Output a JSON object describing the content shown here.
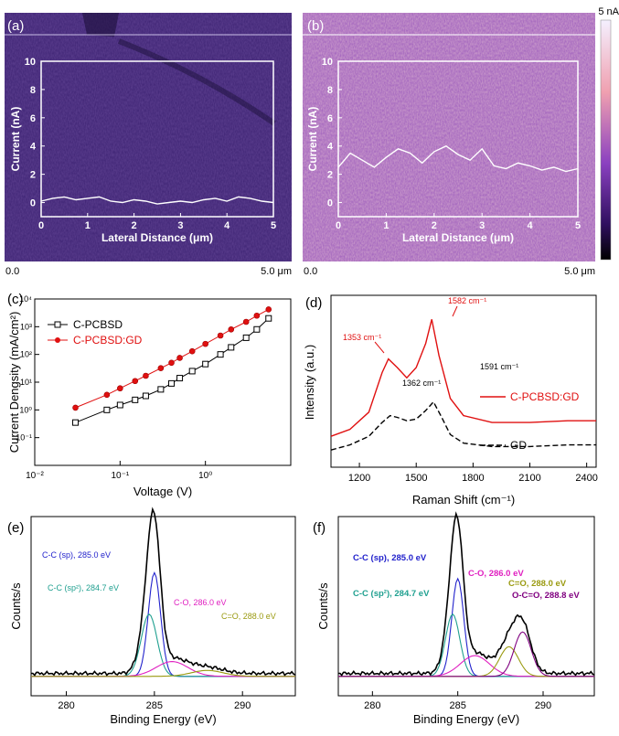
{
  "panels": {
    "a": {
      "label": "(a)"
    },
    "b": {
      "label": "(b)"
    },
    "c": {
      "label": "(c)"
    },
    "d": {
      "label": "(d)"
    },
    "e": {
      "label": "(e)"
    },
    "f": {
      "label": "(f)"
    }
  },
  "colorbar": {
    "max_label": "5 nA"
  },
  "afm_scale": {
    "left": "0.0",
    "right": "5.0 μm"
  },
  "chart_data": [
    {
      "id": "a",
      "type": "line",
      "xlabel": "Lateral Distance (μm)",
      "ylabel": "Current (nA)",
      "xlim": [
        0,
        5
      ],
      "ylim": [
        -1,
        10
      ],
      "xticks": [
        "0",
        "1",
        "2",
        "3",
        "4",
        "5"
      ],
      "yticks": [
        "0",
        "2",
        "4",
        "6",
        "8",
        "10"
      ],
      "series": [
        {
          "x": [
            0,
            0.25,
            0.5,
            0.75,
            1,
            1.25,
            1.5,
            1.75,
            2,
            2.25,
            2.5,
            2.75,
            3,
            3.25,
            3.5,
            3.75,
            4,
            4.25,
            4.5,
            4.75,
            5
          ],
          "y": [
            0.1,
            0.3,
            0.4,
            0.2,
            0.3,
            0.4,
            0.1,
            0.0,
            0.2,
            0.1,
            -0.1,
            0.0,
            0.1,
            0.0,
            0.2,
            0.3,
            0.1,
            0.4,
            0.3,
            0.1,
            0.0
          ]
        }
      ]
    },
    {
      "id": "b",
      "type": "line",
      "xlabel": "Lateral Distance (μm)",
      "ylabel": "Current (nA)",
      "xlim": [
        0,
        5
      ],
      "ylim": [
        -1,
        10
      ],
      "xticks": [
        "0",
        "1",
        "2",
        "3",
        "4",
        "5"
      ],
      "yticks": [
        "0",
        "2",
        "4",
        "6",
        "8",
        "10"
      ],
      "series": [
        {
          "x": [
            0,
            0.25,
            0.5,
            0.75,
            1,
            1.25,
            1.5,
            1.75,
            2,
            2.25,
            2.5,
            2.75,
            3,
            3.25,
            3.5,
            3.75,
            4,
            4.25,
            4.5,
            4.75,
            5
          ],
          "y": [
            2.5,
            3.5,
            3.0,
            2.5,
            3.2,
            3.8,
            3.5,
            2.8,
            3.6,
            4.0,
            3.4,
            3.0,
            3.8,
            2.6,
            2.4,
            2.8,
            2.6,
            2.3,
            2.5,
            2.2,
            2.4
          ]
        }
      ]
    },
    {
      "id": "c",
      "type": "scatter",
      "xscale": "log",
      "yscale": "log",
      "xlabel": "Voltage (V)",
      "ylabel": "Current Dengsity (mA/cm²)",
      "xlim": [
        0.01,
        10
      ],
      "ylim": [
        0.01,
        10000
      ],
      "xticks": [
        "10⁻²",
        "10⁻¹",
        "10⁰"
      ],
      "yticks": [
        "10⁻¹",
        "10⁰",
        "10¹",
        "10²",
        "10³",
        "10⁴"
      ],
      "legend": "top-left",
      "series": [
        {
          "name": "C-PCBSD",
          "color": "#000000",
          "marker": "open-square",
          "x": [
            0.03,
            0.07,
            0.1,
            0.15,
            0.2,
            0.3,
            0.4,
            0.5,
            0.7,
            1,
            1.5,
            2,
            3,
            4,
            5.5
          ],
          "y": [
            0.35,
            1,
            1.5,
            2.3,
            3.2,
            5.5,
            9,
            14,
            25,
            45,
            100,
            180,
            400,
            800,
            2000
          ]
        },
        {
          "name": "C-PCBSD:GD",
          "color": "#e01010",
          "marker": "filled-circle",
          "x": [
            0.03,
            0.07,
            0.1,
            0.15,
            0.2,
            0.3,
            0.4,
            0.5,
            0.7,
            1,
            1.5,
            2,
            3,
            4,
            5.5
          ],
          "y": [
            1.2,
            3.5,
            6,
            11,
            17,
            32,
            50,
            75,
            130,
            240,
            480,
            800,
            1500,
            2500,
            4200
          ]
        }
      ]
    },
    {
      "id": "d",
      "type": "line",
      "xlabel": "Raman Shift (cm⁻¹)",
      "ylabel": "Intensity (a.u.)",
      "xlim": [
        1050,
        2450
      ],
      "xticks": [
        "1200",
        "1500",
        "1800",
        "2100",
        "2400"
      ],
      "legend": "right",
      "series": [
        {
          "name": "C-PCBSD:GD",
          "color": "#e01010",
          "style": "solid",
          "x": [
            1050,
            1150,
            1250,
            1320,
            1353,
            1400,
            1450,
            1500,
            1550,
            1582,
            1620,
            1680,
            1750,
            1900,
            2100,
            2300,
            2450
          ],
          "y": [
            0.18,
            0.22,
            0.32,
            0.55,
            0.63,
            0.58,
            0.52,
            0.58,
            0.72,
            0.86,
            0.65,
            0.4,
            0.3,
            0.26,
            0.26,
            0.27,
            0.27
          ]
        },
        {
          "name": "GD",
          "color": "#000000",
          "style": "dashed",
          "x": [
            1050,
            1150,
            1250,
            1320,
            1362,
            1400,
            1450,
            1500,
            1550,
            1591,
            1630,
            1680,
            1750,
            1900,
            2100,
            2300,
            2450
          ],
          "y": [
            0.1,
            0.13,
            0.18,
            0.26,
            0.3,
            0.29,
            0.27,
            0.28,
            0.33,
            0.38,
            0.3,
            0.19,
            0.14,
            0.12,
            0.12,
            0.13,
            0.13
          ]
        }
      ],
      "annotations": [
        {
          "text": "1353 cm⁻¹",
          "color": "#e01010"
        },
        {
          "text": "1582 cm⁻¹",
          "color": "#e01010"
        },
        {
          "text": "1362 cm⁻¹",
          "color": "#000000"
        },
        {
          "text": "1591 cm⁻¹",
          "color": "#000000"
        }
      ]
    },
    {
      "id": "e",
      "type": "line",
      "xlabel": "Binding Energy (eV)",
      "ylabel": "Counts/s",
      "xlim": [
        278,
        293
      ],
      "xticks": [
        "280",
        "285",
        "290"
      ],
      "series": [
        {
          "name": "envelope",
          "color": "#000000",
          "peak": 285.0
        },
        {
          "name": "C-C (sp), 285.0 eV",
          "color": "#2222cc",
          "peak": 285.0
        },
        {
          "name": "C-C (sp²), 284.7 eV",
          "color": "#20a090",
          "peak": 284.7
        },
        {
          "name": "C-O, 286.0 eV",
          "color": "#e020c0",
          "peak": 286.0
        },
        {
          "name": "C=O, 288.0 eV",
          "color": "#9a9a10",
          "peak": 288.0
        }
      ]
    },
    {
      "id": "f",
      "type": "line",
      "xlabel": "Binding Energy (eV)",
      "ylabel": "Counts/s",
      "xlim": [
        278,
        293
      ],
      "xticks": [
        "280",
        "285",
        "290"
      ],
      "series": [
        {
          "name": "envelope",
          "color": "#000000",
          "peak": 285.0
        },
        {
          "name": "C-C (sp), 285.0 eV",
          "color": "#2222cc",
          "peak": 285.0
        },
        {
          "name": "C-C (sp²), 284.7 eV",
          "color": "#20a090",
          "peak": 284.7
        },
        {
          "name": "C-O, 286.0 eV",
          "color": "#e020c0",
          "peak": 286.0
        },
        {
          "name": "C=O, 288.0 eV",
          "color": "#9a9a10",
          "peak": 288.0
        },
        {
          "name": "O-C=O, 288.8 eV",
          "color": "#800080",
          "peak": 288.8
        }
      ]
    }
  ]
}
